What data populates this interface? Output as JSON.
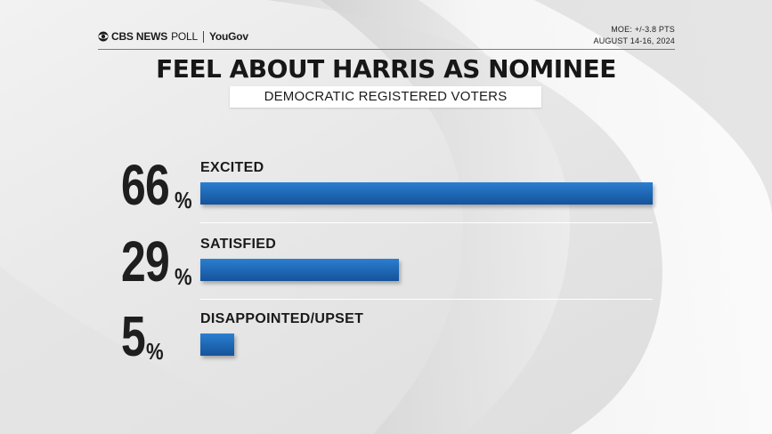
{
  "header": {
    "brand_cbs": "CBS NEWS",
    "brand_poll": "POLL",
    "brand_partner": "YouGov",
    "moe": "MOE: +/-3.8 PTS",
    "dates": "AUGUST 14-16, 2024"
  },
  "colors": {
    "bar": "#1f68b5",
    "title": "#171717",
    "background": "#e9e9e9"
  },
  "chart_data": {
    "type": "bar",
    "orientation": "horizontal",
    "title": "FEEL ABOUT HARRIS AS NOMINEE",
    "subtitle": "DEMOCRATIC REGISTERED VOTERS",
    "categories": [
      "EXCITED",
      "SATISFIED",
      "DISAPPOINTED/UPSET"
    ],
    "values": [
      66,
      29,
      5
    ],
    "value_labels": [
      "66",
      "29",
      "5"
    ],
    "unit": "%",
    "xlim": [
      0,
      66
    ],
    "grid": false,
    "legend": "none"
  }
}
